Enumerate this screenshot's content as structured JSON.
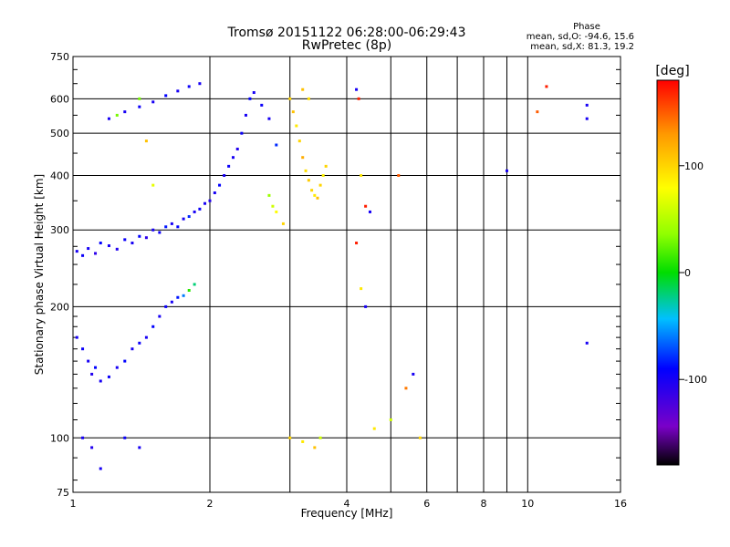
{
  "chart_data": {
    "type": "scatter",
    "title": "Tromsø 20151122 06:28:00-06:29:43",
    "subtitle": "RwPretec (8p)",
    "xlabel": "Frequency [MHz]",
    "ylabel": "Stationary phase Virtual Height [km]",
    "xscale": "log",
    "yscale": "log",
    "xlim": [
      1,
      16
    ],
    "ylim": [
      75,
      750
    ],
    "grid": true,
    "xticks": [
      1,
      2,
      4,
      6,
      8,
      10,
      16
    ],
    "yticks": [
      75,
      100,
      200,
      300,
      400,
      500,
      600,
      750
    ],
    "phase_stats": {
      "title": "Phase",
      "line_o": "mean, sd,O: -94.6, 15.6",
      "line_x": "mean, sd,X: 81.3, 19.2"
    },
    "colorbar": {
      "label": "[deg]",
      "range": [
        -180,
        180
      ],
      "ticks": [
        -100,
        0,
        100
      ],
      "colormap": "rainbow (black→purple→blue→cyan→green→yellow→red)"
    },
    "series": [
      {
        "name": "",
        "description": "echo traces, color = phase [deg]",
        "points": [
          [
            1.02,
            268,
            -100
          ],
          [
            1.05,
            262,
            -95
          ],
          [
            1.08,
            272,
            -100
          ],
          [
            1.12,
            265,
            -110
          ],
          [
            1.15,
            280,
            -90
          ],
          [
            1.2,
            276,
            -100
          ],
          [
            1.25,
            271,
            -105
          ],
          [
            1.3,
            285,
            -95
          ],
          [
            1.35,
            280,
            -100
          ],
          [
            1.4,
            290,
            -90
          ],
          [
            1.45,
            288,
            -110
          ],
          [
            1.5,
            300,
            -100
          ],
          [
            1.55,
            296,
            -95
          ],
          [
            1.6,
            305,
            -85
          ],
          [
            1.65,
            310,
            -100
          ],
          [
            1.7,
            305,
            -90
          ],
          [
            1.75,
            318,
            -100
          ],
          [
            1.8,
            322,
            -80
          ],
          [
            1.85,
            330,
            -100
          ],
          [
            1.9,
            335,
            -95
          ],
          [
            1.95,
            345,
            -100
          ],
          [
            2.0,
            350,
            -105
          ],
          [
            2.05,
            365,
            -100
          ],
          [
            2.1,
            380,
            -90
          ],
          [
            2.15,
            400,
            -100
          ],
          [
            2.2,
            420,
            -95
          ],
          [
            2.25,
            440,
            -100
          ],
          [
            2.3,
            460,
            -105
          ],
          [
            2.35,
            500,
            -95
          ],
          [
            2.4,
            550,
            -100
          ],
          [
            2.45,
            600,
            -90
          ],
          [
            2.5,
            620,
            -100
          ],
          [
            2.6,
            580,
            -95
          ],
          [
            2.7,
            540,
            -100
          ],
          [
            2.8,
            470,
            -80
          ],
          [
            1.3,
            560,
            -100
          ],
          [
            1.4,
            575,
            -95
          ],
          [
            1.5,
            590,
            -100
          ],
          [
            1.6,
            610,
            -90
          ],
          [
            1.7,
            625,
            -100
          ],
          [
            1.8,
            640,
            -95
          ],
          [
            1.9,
            650,
            -100
          ],
          [
            1.2,
            540,
            -100
          ],
          [
            1.25,
            550,
            30
          ],
          [
            1.02,
            170,
            -100
          ],
          [
            1.05,
            160,
            -95
          ],
          [
            1.08,
            150,
            -100
          ],
          [
            1.1,
            140,
            -105
          ],
          [
            1.12,
            145,
            -90
          ],
          [
            1.15,
            135,
            -100
          ],
          [
            1.2,
            138,
            -95
          ],
          [
            1.25,
            145,
            -100
          ],
          [
            1.3,
            150,
            -90
          ],
          [
            1.35,
            160,
            -100
          ],
          [
            1.4,
            165,
            -95
          ],
          [
            1.45,
            170,
            -100
          ],
          [
            1.5,
            180,
            -90
          ],
          [
            1.55,
            190,
            -100
          ],
          [
            1.6,
            200,
            -95
          ],
          [
            1.65,
            205,
            -100
          ],
          [
            1.7,
            210,
            -85
          ],
          [
            1.75,
            212,
            -60
          ],
          [
            1.8,
            218,
            10
          ],
          [
            1.85,
            225,
            -20
          ],
          [
            1.4,
            600,
            30
          ],
          [
            1.45,
            480,
            110
          ],
          [
            1.5,
            380,
            70
          ],
          [
            3.0,
            600,
            100
          ],
          [
            3.05,
            560,
            110
          ],
          [
            3.1,
            520,
            90
          ],
          [
            3.15,
            480,
            100
          ],
          [
            3.2,
            440,
            120
          ],
          [
            3.25,
            410,
            95
          ],
          [
            3.3,
            390,
            105
          ],
          [
            3.35,
            370,
            100
          ],
          [
            3.4,
            360,
            90
          ],
          [
            3.45,
            355,
            110
          ],
          [
            3.5,
            380,
            100
          ],
          [
            3.55,
            400,
            85
          ],
          [
            3.6,
            420,
            100
          ],
          [
            3.2,
            630,
            110
          ],
          [
            3.3,
            600,
            95
          ],
          [
            2.7,
            360,
            40
          ],
          [
            2.75,
            340,
            60
          ],
          [
            2.8,
            330,
            80
          ],
          [
            2.9,
            310,
            100
          ],
          [
            4.2,
            630,
            -100
          ],
          [
            4.25,
            600,
            170
          ],
          [
            4.3,
            400,
            90
          ],
          [
            4.4,
            340,
            170
          ],
          [
            4.5,
            330,
            -100
          ],
          [
            4.2,
            280,
            170
          ],
          [
            4.3,
            220,
            90
          ],
          [
            4.4,
            200,
            -100
          ],
          [
            5.2,
            400,
            150
          ],
          [
            5.4,
            130,
            140
          ],
          [
            5.6,
            140,
            -100
          ],
          [
            5.0,
            110,
            60
          ],
          [
            4.6,
            105,
            90
          ],
          [
            5.8,
            100,
            100
          ],
          [
            3.0,
            100,
            100
          ],
          [
            3.2,
            98,
            90
          ],
          [
            3.4,
            95,
            110
          ],
          [
            3.5,
            100,
            60
          ],
          [
            10.5,
            560,
            150
          ],
          [
            11.0,
            640,
            170
          ],
          [
            13.5,
            580,
            -100
          ],
          [
            13.5,
            540,
            -100
          ],
          [
            9.0,
            410,
            -100
          ],
          [
            13.5,
            165,
            -100
          ],
          [
            1.05,
            100,
            -100
          ],
          [
            1.1,
            95,
            -105
          ],
          [
            1.15,
            85,
            -100
          ],
          [
            1.3,
            100,
            -95
          ],
          [
            1.4,
            95,
            -100
          ]
        ]
      }
    ]
  }
}
